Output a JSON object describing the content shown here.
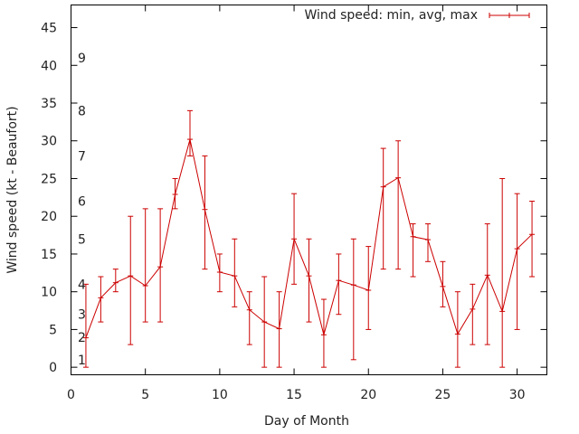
{
  "chart_data": {
    "type": "line",
    "title": "",
    "xlabel": "Day of Month",
    "ylabel": "Wind speed (kt - Beaufort)",
    "xlim": [
      0,
      32
    ],
    "ylim": [
      -1,
      48
    ],
    "xticks": [
      0,
      5,
      10,
      15,
      20,
      25,
      30
    ],
    "yticks": [
      0,
      5,
      10,
      15,
      20,
      25,
      30,
      35,
      40,
      45
    ],
    "beaufort_marks": [
      {
        "label": "1",
        "y": 1
      },
      {
        "label": "2",
        "y": 4
      },
      {
        "label": "3",
        "y": 7
      },
      {
        "label": "4",
        "y": 11
      },
      {
        "label": "5",
        "y": 17
      },
      {
        "label": "6",
        "y": 22
      },
      {
        "label": "7",
        "y": 28
      },
      {
        "label": "8",
        "y": 34
      },
      {
        "label": "9",
        "y": 41
      }
    ],
    "legend": {
      "label": "Wind speed: min, avg, max",
      "position": "top-right"
    },
    "series_color": "#cc0000",
    "series": [
      {
        "name": "Wind speed: min, avg, max",
        "x": [
          1,
          2,
          3,
          4,
          5,
          6,
          7,
          8,
          9,
          10,
          11,
          12,
          13,
          14,
          15,
          16,
          17,
          18,
          19,
          20,
          21,
          22,
          23,
          24,
          25,
          26,
          27,
          28,
          29,
          30,
          31
        ],
        "avg": [
          3.9,
          9.2,
          11.2,
          12.1,
          10.8,
          13.3,
          22.9,
          30.2,
          20.9,
          12.6,
          12.1,
          7.6,
          6.0,
          5.1,
          17.0,
          12.1,
          4.3,
          11.5,
          10.9,
          10.2,
          23.9,
          25.1,
          17.3,
          16.9,
          10.7,
          4.4,
          7.7,
          12.2,
          7.4,
          15.7,
          17.6
        ],
        "min": [
          0,
          6,
          10,
          3,
          6,
          6,
          21,
          28,
          13,
          10,
          8,
          3,
          0,
          0,
          11,
          6,
          0,
          7,
          1,
          5,
          13,
          13,
          12,
          14,
          8,
          0,
          3,
          3,
          0,
          5,
          12
        ],
        "max": [
          11,
          12,
          13,
          20,
          21,
          21,
          25,
          34,
          28,
          15,
          17,
          10,
          12,
          10,
          23,
          17,
          9,
          15,
          17,
          16,
          29,
          30,
          19,
          19,
          14,
          10,
          11,
          19,
          25,
          23,
          22
        ]
      }
    ]
  }
}
